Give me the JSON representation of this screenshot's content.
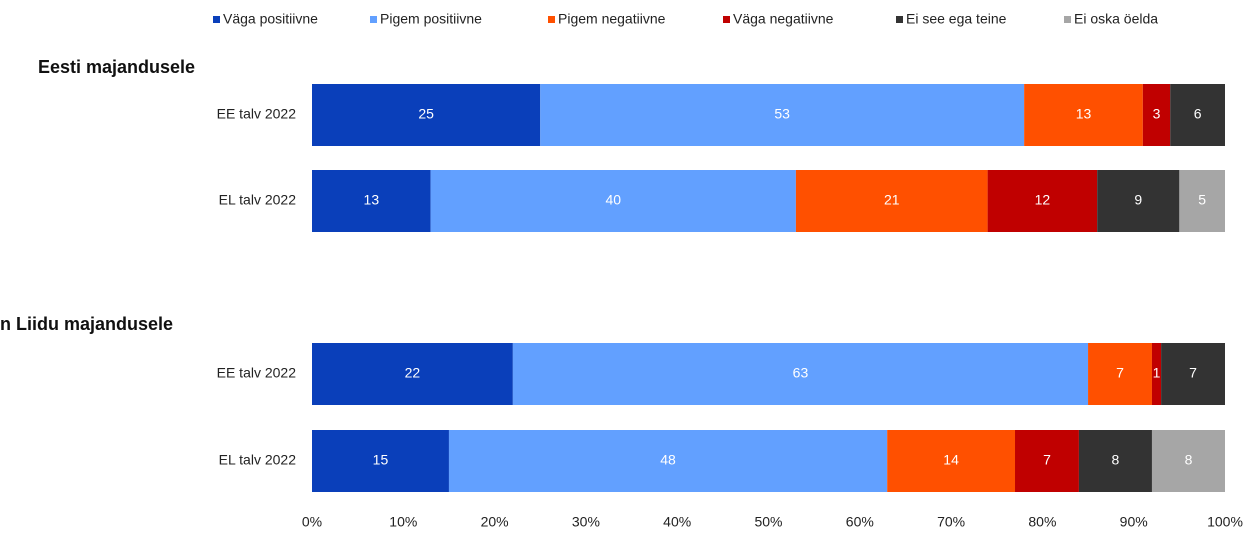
{
  "chart_data": {
    "type": "stacked-bar-horizontal",
    "groups": [
      "Eesti majandusele",
      "n Liidu majandusele"
    ],
    "categories": [
      "EE talv 2022",
      "EL talv 2022",
      "EE talv 2022",
      "EL talv 2022"
    ],
    "series": [
      {
        "name": "Väga positiivne",
        "color": "#0a3fba",
        "values": [
          25,
          13,
          22,
          15
        ]
      },
      {
        "name": "Pigem positiivne",
        "color": "#62a0ff",
        "values": [
          53,
          40,
          63,
          48
        ]
      },
      {
        "name": "Pigem negatiivne",
        "color": "#ff5000",
        "values": [
          13,
          21,
          7,
          14
        ]
      },
      {
        "name": "Väga negatiivne",
        "color": "#c00000",
        "values": [
          3,
          12,
          1,
          7
        ]
      },
      {
        "name": "Ei see ega teine",
        "color": "#333333",
        "values": [
          6,
          9,
          7,
          8
        ]
      },
      {
        "name": "Ei oska öelda",
        "color": "#a6a6a6",
        "values": [
          null,
          5,
          null,
          8
        ]
      }
    ],
    "xlim": [
      0,
      100
    ],
    "xticks": [
      {
        "value": 0,
        "label": "0%"
      },
      {
        "value": 10,
        "label": "10%"
      },
      {
        "value": 20,
        "label": "20%"
      },
      {
        "value": 30,
        "label": "30%"
      },
      {
        "value": 40,
        "label": "40%"
      },
      {
        "value": 50,
        "label": "50%"
      },
      {
        "value": 60,
        "label": "60%"
      },
      {
        "value": 70,
        "label": "70%"
      },
      {
        "value": 80,
        "label": "80%"
      },
      {
        "value": 90,
        "label": "90%"
      },
      {
        "value": 100,
        "label": "100%"
      }
    ],
    "legend": "top"
  }
}
